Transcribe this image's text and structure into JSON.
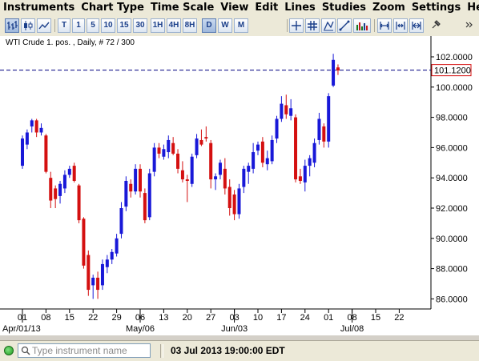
{
  "menu": [
    "Instruments",
    "Chart Type",
    "Time Scale",
    "View",
    "Edit",
    "Lines",
    "Studies",
    "Zoom",
    "Settings",
    "Help"
  ],
  "toolbar": {
    "timeframes": [
      "T",
      "1",
      "5",
      "10",
      "15",
      "30",
      "1H",
      "4H",
      "8H",
      "D",
      "W",
      "M"
    ],
    "active_timeframe": "D"
  },
  "chart_header": "WTI Crude 1. pos. , Daily, # 72 / 300",
  "status_bar": {
    "search_placeholder": "Type instrument name",
    "datetime": "03 Jul 2013 19:00:00 EDT"
  },
  "colors": {
    "up": "#1818d8",
    "down": "#d41010",
    "last_price_line": "#000080",
    "status": "#22aa22"
  },
  "chart_data": {
    "type": "candlestick",
    "title": "WTI Crude 1. pos. , Daily, # 72 / 300",
    "instrument": "WTI Crude 1. pos.",
    "interval": "Daily",
    "ylim": [
      85,
      103
    ],
    "y_ticks": [
      "86.0000",
      "88.0000",
      "90.0000",
      "92.0000",
      "94.0000",
      "96.0000",
      "98.0000",
      "100.0000",
      "102.0000"
    ],
    "x_ticks": [
      "01",
      "08",
      "15",
      "22",
      "29",
      "06",
      "13",
      "20",
      "27",
      "03",
      "10",
      "17",
      "24",
      "01",
      "08",
      "15",
      "22"
    ],
    "x_tick_index": [
      0,
      5,
      10,
      15,
      20,
      25,
      30,
      35,
      40,
      45,
      50,
      55,
      60,
      65,
      70,
      75,
      80
    ],
    "month_labels": [
      {
        "label": "Apr/01/13",
        "index": 0
      },
      {
        "label": "May/06",
        "index": 25
      },
      {
        "label": "Jun/03",
        "index": 45
      },
      {
        "label": "Jul/08",
        "index": 70
      }
    ],
    "last_price": "101.1200",
    "last_price_value": 101.12,
    "candles": [
      {
        "o": 94.8,
        "h": 96.8,
        "l": 94.6,
        "c": 96.6
      },
      {
        "o": 96.2,
        "h": 97.2,
        "l": 95.9,
        "c": 97.0
      },
      {
        "o": 97.4,
        "h": 97.9,
        "l": 97.0,
        "c": 97.8
      },
      {
        "o": 97.8,
        "h": 97.9,
        "l": 96.7,
        "c": 97.0
      },
      {
        "o": 97.0,
        "h": 97.6,
        "l": 96.8,
        "c": 97.3
      },
      {
        "o": 96.8,
        "h": 96.9,
        "l": 94.3,
        "c": 94.4
      },
      {
        "o": 94.0,
        "h": 94.4,
        "l": 92.0,
        "c": 92.5
      },
      {
        "o": 93.3,
        "h": 93.5,
        "l": 92.0,
        "c": 92.6
      },
      {
        "o": 92.8,
        "h": 93.8,
        "l": 92.3,
        "c": 93.6
      },
      {
        "o": 93.3,
        "h": 94.5,
        "l": 93.0,
        "c": 94.2
      },
      {
        "o": 94.2,
        "h": 94.8,
        "l": 94.0,
        "c": 94.6
      },
      {
        "o": 94.8,
        "h": 95.0,
        "l": 93.7,
        "c": 93.8
      },
      {
        "o": 93.5,
        "h": 93.6,
        "l": 91.0,
        "c": 91.2
      },
      {
        "o": 91.3,
        "h": 91.4,
        "l": 88.0,
        "c": 88.2
      },
      {
        "o": 88.9,
        "h": 89.2,
        "l": 86.2,
        "c": 86.6
      },
      {
        "o": 86.9,
        "h": 87.6,
        "l": 86.0,
        "c": 87.4
      },
      {
        "o": 87.4,
        "h": 87.8,
        "l": 86.0,
        "c": 86.6
      },
      {
        "o": 86.9,
        "h": 88.6,
        "l": 86.6,
        "c": 88.3
      },
      {
        "o": 88.1,
        "h": 88.9,
        "l": 87.7,
        "c": 88.6
      },
      {
        "o": 88.6,
        "h": 89.3,
        "l": 88.3,
        "c": 89.1
      },
      {
        "o": 89.0,
        "h": 90.3,
        "l": 88.8,
        "c": 90.0
      },
      {
        "o": 90.3,
        "h": 92.4,
        "l": 90.0,
        "c": 92.0
      },
      {
        "o": 92.1,
        "h": 94.1,
        "l": 91.8,
        "c": 93.8
      },
      {
        "o": 93.6,
        "h": 93.9,
        "l": 92.7,
        "c": 93.1
      },
      {
        "o": 93.1,
        "h": 94.9,
        "l": 92.9,
        "c": 94.6
      },
      {
        "o": 94.6,
        "h": 94.9,
        "l": 92.7,
        "c": 93.1
      },
      {
        "o": 93.0,
        "h": 93.3,
        "l": 91.0,
        "c": 91.2
      },
      {
        "o": 91.4,
        "h": 94.6,
        "l": 91.2,
        "c": 94.3
      },
      {
        "o": 94.4,
        "h": 96.3,
        "l": 94.1,
        "c": 96.0
      },
      {
        "o": 96.0,
        "h": 96.3,
        "l": 95.3,
        "c": 95.6
      },
      {
        "o": 95.4,
        "h": 96.2,
        "l": 95.2,
        "c": 95.9
      },
      {
        "o": 95.7,
        "h": 96.8,
        "l": 95.3,
        "c": 96.5
      },
      {
        "o": 96.3,
        "h": 96.7,
        "l": 95.5,
        "c": 95.6
      },
      {
        "o": 95.6,
        "h": 95.9,
        "l": 94.3,
        "c": 94.6
      },
      {
        "o": 94.5,
        "h": 95.1,
        "l": 93.7,
        "c": 93.9
      },
      {
        "o": 93.9,
        "h": 94.2,
        "l": 92.4,
        "c": 93.8
      },
      {
        "o": 93.6,
        "h": 95.6,
        "l": 93.4,
        "c": 95.4
      },
      {
        "o": 95.5,
        "h": 96.9,
        "l": 95.3,
        "c": 96.6
      },
      {
        "o": 96.5,
        "h": 97.2,
        "l": 96.1,
        "c": 96.2
      },
      {
        "o": 96.7,
        "h": 97.4,
        "l": 96.4,
        "c": 96.6
      },
      {
        "o": 96.3,
        "h": 96.5,
        "l": 93.3,
        "c": 93.9
      },
      {
        "o": 93.9,
        "h": 94.3,
        "l": 93.2,
        "c": 94.1
      },
      {
        "o": 94.2,
        "h": 95.2,
        "l": 93.9,
        "c": 95.0
      },
      {
        "o": 94.6,
        "h": 95.3,
        "l": 92.9,
        "c": 93.3
      },
      {
        "o": 93.4,
        "h": 93.9,
        "l": 91.5,
        "c": 92.0
      },
      {
        "o": 92.9,
        "h": 93.2,
        "l": 91.2,
        "c": 91.6
      },
      {
        "o": 91.6,
        "h": 93.6,
        "l": 91.3,
        "c": 93.3
      },
      {
        "o": 93.4,
        "h": 94.8,
        "l": 93.0,
        "c": 94.6
      },
      {
        "o": 94.4,
        "h": 95.0,
        "l": 93.6,
        "c": 94.8
      },
      {
        "o": 94.6,
        "h": 96.3,
        "l": 94.3,
        "c": 95.7
      },
      {
        "o": 95.8,
        "h": 96.4,
        "l": 95.5,
        "c": 96.2
      },
      {
        "o": 96.4,
        "h": 96.7,
        "l": 94.7,
        "c": 95.0
      },
      {
        "o": 94.9,
        "h": 95.8,
        "l": 94.5,
        "c": 95.3
      },
      {
        "o": 95.1,
        "h": 96.8,
        "l": 94.9,
        "c": 96.5
      },
      {
        "o": 96.6,
        "h": 98.1,
        "l": 96.3,
        "c": 97.9
      },
      {
        "o": 97.9,
        "h": 99.4,
        "l": 97.7,
        "c": 98.9
      },
      {
        "o": 98.8,
        "h": 99.5,
        "l": 97.9,
        "c": 98.2
      },
      {
        "o": 98.1,
        "h": 99.2,
        "l": 97.8,
        "c": 98.6
      },
      {
        "o": 98.0,
        "h": 98.2,
        "l": 93.7,
        "c": 93.9
      },
      {
        "o": 94.1,
        "h": 94.6,
        "l": 93.6,
        "c": 93.8
      },
      {
        "o": 93.7,
        "h": 95.2,
        "l": 93.1,
        "c": 94.8
      },
      {
        "o": 94.8,
        "h": 95.5,
        "l": 94.1,
        "c": 95.3
      },
      {
        "o": 95.0,
        "h": 96.6,
        "l": 94.7,
        "c": 96.3
      },
      {
        "o": 96.5,
        "h": 98.3,
        "l": 96.2,
        "c": 97.9
      },
      {
        "o": 97.4,
        "h": 97.6,
        "l": 96.0,
        "c": 96.4
      },
      {
        "o": 96.4,
        "h": 99.6,
        "l": 96.0,
        "c": 99.4
      },
      {
        "o": 100.1,
        "h": 102.2,
        "l": 100.0,
        "c": 101.8
      },
      {
        "o": 101.3,
        "h": 101.5,
        "l": 100.8,
        "c": 101.1
      }
    ]
  }
}
